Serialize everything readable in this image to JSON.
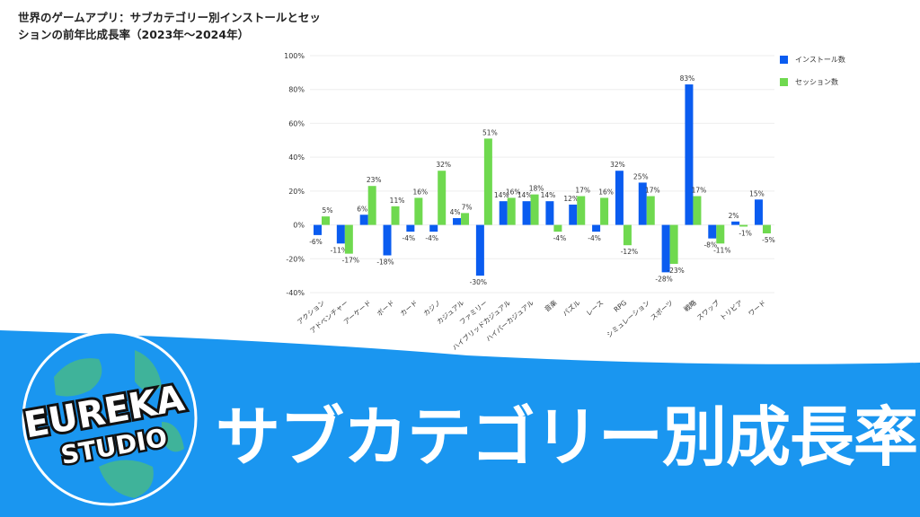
{
  "chart_data": {
    "type": "bar",
    "title": "世界のゲームアプリ：サブカテゴリー別インストールとセッションの前年比成長率（2023年〜2024年）",
    "categories": [
      "アクション",
      "アドベンチャー",
      "アーケード",
      "ボード",
      "カード",
      "カジノ",
      "カジュアル",
      "ファミリー",
      "ハイブリッドカジュアル",
      "ハイパーカジュアル",
      "音楽",
      "パズル",
      "レース",
      "RPG",
      "シミュレーション",
      "スポーツ",
      "戦略",
      "スワップ",
      "トリビア",
      "ワード"
    ],
    "series": [
      {
        "name": "インストール数",
        "color": "#0a5cf0",
        "values": [
          -6,
          -11,
          6,
          -18,
          -4,
          -4,
          4,
          -30,
          14,
          14,
          14,
          12,
          -4,
          32,
          25,
          -28,
          83,
          -8,
          2,
          15
        ]
      },
      {
        "name": "セッション数",
        "color": "#6fd94f",
        "values": [
          5,
          -17,
          23,
          11,
          16,
          32,
          7,
          51,
          16,
          18,
          -4,
          17,
          16,
          -12,
          17,
          -23,
          17,
          -11,
          -1,
          -5
        ]
      }
    ],
    "ylim": [
      -40,
      100
    ],
    "yticks": [
      "100%",
      "80%",
      "60%",
      "40%",
      "20%",
      "0%",
      "-20%",
      "-40%"
    ],
    "ytick_values": [
      100,
      80,
      60,
      40,
      20,
      0,
      -20,
      -40
    ],
    "value_suffix": "%",
    "grid": true,
    "legend": "top-right"
  },
  "banner": {
    "logo_line1": "EUREKA",
    "logo_line2": "STUDIO",
    "title": "サブカテゴリー別成長率",
    "color": "#1a96f0"
  }
}
